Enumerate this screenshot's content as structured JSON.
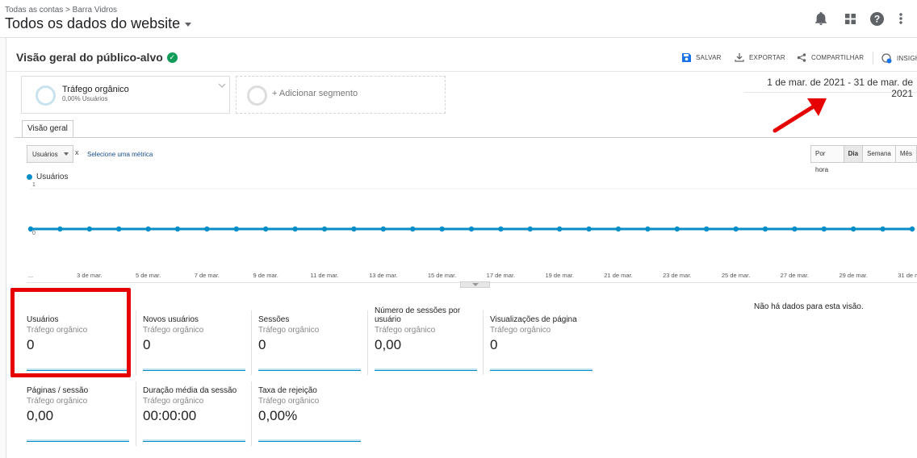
{
  "header": {
    "breadcrumb": "Todas as contas > Barra Vidros",
    "view_title": "Todos os dados do website",
    "icons": [
      "bell-icon",
      "apps-grid-icon",
      "help-icon",
      "more-vert-icon"
    ]
  },
  "report": {
    "title": "Visão geral do público-alvo",
    "toolbar": {
      "save": "SALVAR",
      "export": "EXPORTAR",
      "share": "COMPARTILHAR",
      "insights": "INSIGH"
    }
  },
  "segments": {
    "active": {
      "name": "Tráfego orgânico",
      "detail": "0,00% Usuários"
    },
    "add_label": "+ Adicionar segmento"
  },
  "date_range": "1 de mar. de 2021 - 31 de mar. de 2021",
  "tabs": [
    {
      "label": "Visão geral"
    }
  ],
  "chart_controls": {
    "metric": "Usuários",
    "remove": "x",
    "select_metric": "Selecione uma métrica",
    "granularity": [
      "Por hora",
      "Dia",
      "Semana",
      "Mês"
    ],
    "active_granularity": "Dia"
  },
  "colors": {
    "series": "#058dc7",
    "highlight": "#e60000",
    "arrow": "#e60000"
  },
  "chart_data": {
    "type": "line",
    "series": [
      {
        "name": "Usuários",
        "values": [
          0,
          0,
          0,
          0,
          0,
          0,
          0,
          0,
          0,
          0,
          0,
          0,
          0,
          0,
          0,
          0,
          0,
          0,
          0,
          0,
          0,
          0,
          0,
          0,
          0,
          0,
          0,
          0,
          0,
          0,
          0
        ]
      }
    ],
    "x": [
      "1 de mar.",
      "2 de mar.",
      "3 de mar.",
      "4 de mar.",
      "5 de mar.",
      "6 de mar.",
      "7 de mar.",
      "8 de mar.",
      "9 de mar.",
      "10 de mar.",
      "11 de mar.",
      "12 de mar.",
      "13 de mar.",
      "14 de mar.",
      "15 de mar.",
      "16 de mar.",
      "17 de mar.",
      "18 de mar.",
      "19 de mar.",
      "20 de mar.",
      "21 de mar.",
      "22 de mar.",
      "23 de mar.",
      "24 de mar.",
      "25 de mar.",
      "26 de mar.",
      "27 de mar.",
      "28 de mar.",
      "29 de mar.",
      "30 de mar.",
      "31 de mar."
    ],
    "x_tick_labels": [
      "...",
      "3 de mar.",
      "5 de mar.",
      "7 de mar.",
      "9 de mar.",
      "11 de mar.",
      "13 de mar.",
      "15 de mar.",
      "17 de mar.",
      "19 de mar.",
      "21 de mar.",
      "23 de mar.",
      "25 de mar.",
      "27 de mar.",
      "29 de mar.",
      "31 de mar."
    ],
    "y_ticks": [
      "1",
      "0"
    ],
    "ylim": [
      0,
      1
    ],
    "title": "",
    "xlabel": "",
    "ylabel": ""
  },
  "metrics": [
    {
      "label": "Usuários",
      "segment": "Tráfego orgânico",
      "value": "0"
    },
    {
      "label": "Novos usuários",
      "segment": "Tráfego orgânico",
      "value": "0"
    },
    {
      "label": "Sessões",
      "segment": "Tráfego orgânico",
      "value": "0"
    },
    {
      "label": "Número de sessões por usuário",
      "segment": "Tráfego orgânico",
      "value": "0,00"
    },
    {
      "label": "Visualizações de página",
      "segment": "Tráfego orgânico",
      "value": "0"
    },
    {
      "label": "Páginas / sessão",
      "segment": "Tráfego orgânico",
      "value": "0,00"
    },
    {
      "label": "Duração média da sessão",
      "segment": "Tráfego orgânico",
      "value": "00:00:00"
    },
    {
      "label": "Taxa de rejeição",
      "segment": "Tráfego orgânico",
      "value": "0,00%"
    }
  ],
  "no_data_message": "Não há dados para esta visão."
}
